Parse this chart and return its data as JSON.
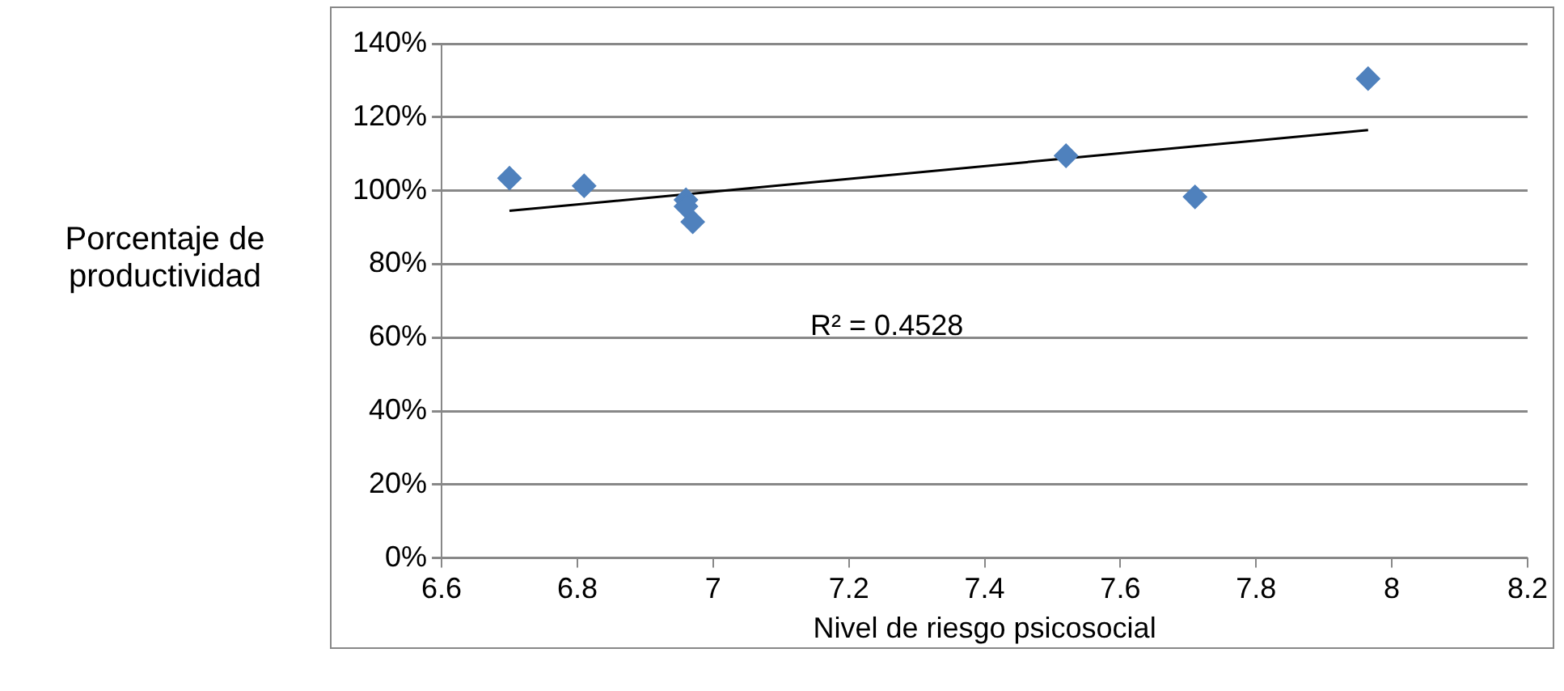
{
  "chart_data": {
    "type": "scatter",
    "xlabel": "Nivel de riesgo psicosocial",
    "ylabel": "Porcentaje de productividad",
    "annotations": [
      "R² = 0.4528"
    ],
    "xlim": [
      6.6,
      8.2
    ],
    "xticks": [
      6.6,
      6.8,
      7,
      7.2,
      7.4,
      7.6,
      7.8,
      8,
      8.2
    ],
    "ylim": [
      0,
      140
    ],
    "yticks": [
      {
        "value": 0,
        "label": "0%"
      },
      {
        "value": 20,
        "label": "20%"
      },
      {
        "value": 40,
        "label": "40%"
      },
      {
        "value": 60,
        "label": "60%"
      },
      {
        "value": 80,
        "label": "80%"
      },
      {
        "value": 100,
        "label": "100%"
      },
      {
        "value": 120,
        "label": "120%"
      },
      {
        "value": 140,
        "label": "140%"
      }
    ],
    "grid": "y",
    "legend": false,
    "marker": "diamond",
    "series": [
      {
        "color": "#4f81bd",
        "x": [
          6.7,
          6.81,
          6.96,
          6.96,
          6.97,
          7.52,
          7.71,
          7.965
        ],
        "values": [
          103.4,
          101.3,
          97.5,
          95.7,
          91.5,
          109.5,
          98.3,
          130.5
        ]
      },
      {
        "type": "line",
        "color": "#000000",
        "x": [
          6.7,
          7.965
        ],
        "values": [
          94.5,
          116.5
        ],
        "marker": "none"
      }
    ]
  }
}
